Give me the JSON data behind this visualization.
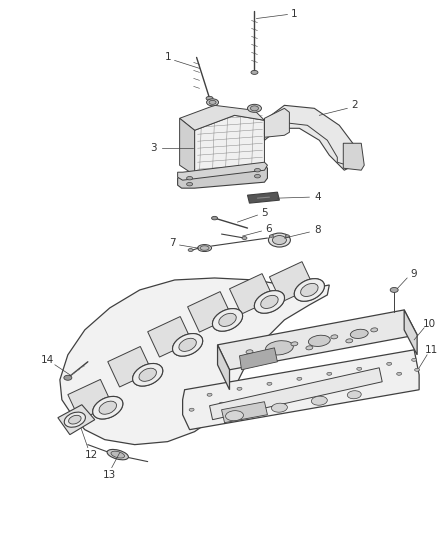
{
  "bg_color": "#ffffff",
  "line_color": "#404040",
  "label_color": "#333333",
  "fig_width": 4.38,
  "fig_height": 5.33,
  "dpi": 100
}
